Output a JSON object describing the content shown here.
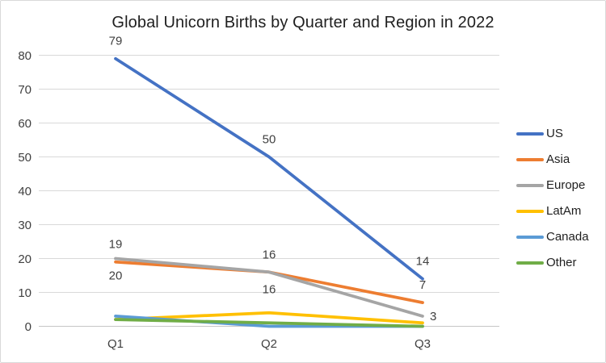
{
  "chart_data": {
    "type": "line",
    "title": "Global Unicorn Births by Quarter and Region in 2022",
    "categories": [
      "Q1",
      "Q2",
      "Q3"
    ],
    "series": [
      {
        "name": "US",
        "color": "#4472C4",
        "values": [
          79,
          50,
          14
        ],
        "labels": {
          "show": true,
          "placements": [
            "above",
            "above",
            "above"
          ]
        }
      },
      {
        "name": "Asia",
        "color": "#ED7D31",
        "values": [
          19,
          16,
          7
        ],
        "labels": {
          "show": true,
          "placements": [
            "above",
            "above",
            "above"
          ]
        }
      },
      {
        "name": "Europe",
        "color": "#A5A5A5",
        "values": [
          20,
          16,
          3
        ],
        "labels": {
          "show": true,
          "placements": [
            "below",
            "below",
            "right"
          ]
        }
      },
      {
        "name": "LatAm",
        "color": "#FFC000",
        "values": [
          2,
          4,
          1
        ],
        "labels": {
          "show": false,
          "placements": []
        }
      },
      {
        "name": "Canada",
        "color": "#5B9BD5",
        "values": [
          3,
          0,
          0
        ],
        "labels": {
          "show": false,
          "placements": []
        }
      },
      {
        "name": "Other",
        "color": "#70AD47",
        "values": [
          2,
          1,
          0
        ],
        "labels": {
          "show": false,
          "placements": []
        }
      }
    ],
    "xlabel": "",
    "ylabel": "",
    "ylim": [
      0,
      80
    ],
    "ytick_step": 10,
    "yticks": [
      "0",
      "10",
      "20",
      "30",
      "40",
      "50",
      "60",
      "70",
      "80"
    ],
    "grid": true,
    "legend_position": "right",
    "colors": {
      "gridline": "#D9D9D9",
      "axis_line": "#C6C6C6",
      "tick_label": "#404040",
      "data_label": "#404040",
      "title": "#1f1f1f"
    }
  }
}
